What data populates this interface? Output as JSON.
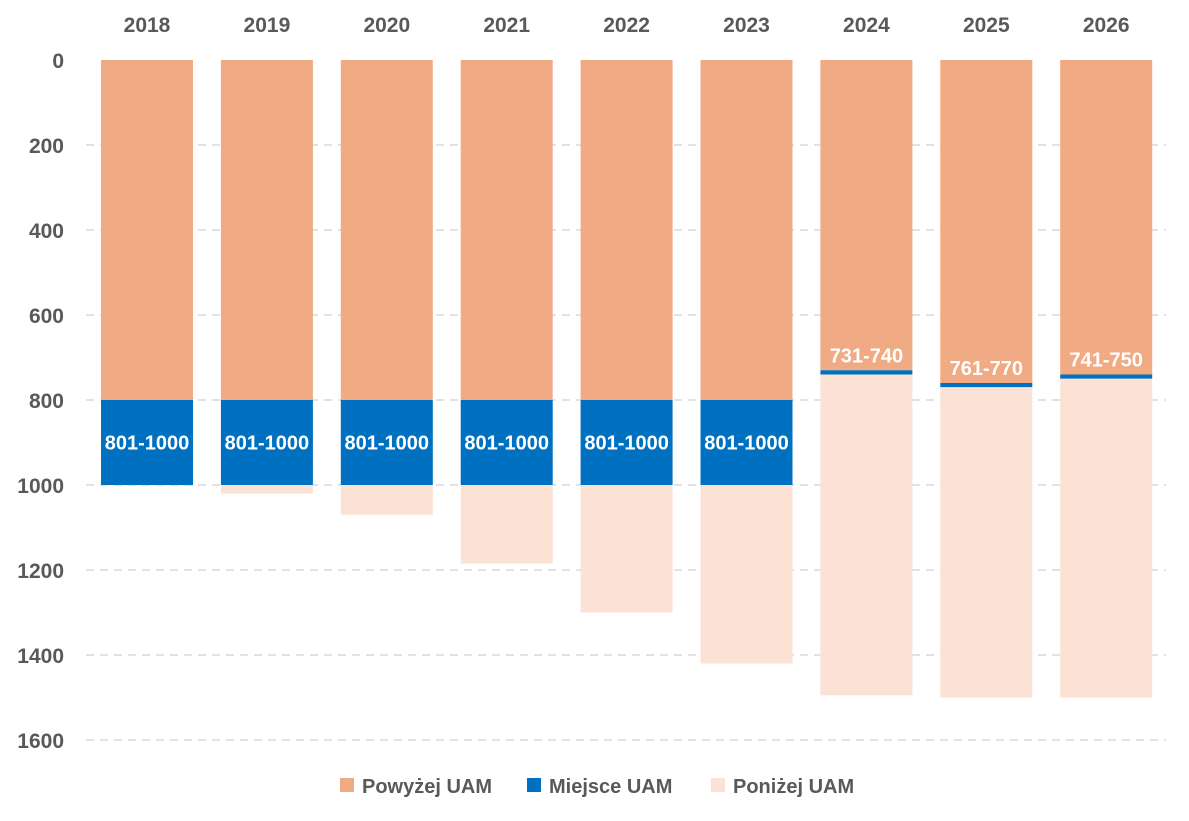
{
  "chart_data": {
    "type": "bar",
    "orientation": "vertical-stacked",
    "y_axis_inverted": true,
    "categories": [
      "2018",
      "2019",
      "2020",
      "2021",
      "2022",
      "2023",
      "2024",
      "2025",
      "2026"
    ],
    "ylim": [
      0,
      1600
    ],
    "y_ticks": [
      0,
      200,
      400,
      600,
      800,
      1000,
      1200,
      1400,
      1600
    ],
    "y_tick_labels": [
      "0",
      "200",
      "400",
      "600",
      "800",
      "1000",
      "1200",
      "1400",
      "1600"
    ],
    "series": [
      {
        "name": "Powyżej UAM",
        "color": "#F0AA84",
        "values": [
          800,
          800,
          800,
          800,
          800,
          800,
          730,
          760,
          740
        ]
      },
      {
        "name": "Miejsce UAM",
        "color": "#0070C0",
        "values": [
          200,
          200,
          200,
          200,
          200,
          200,
          10,
          10,
          10
        ]
      },
      {
        "name": "Poniżej UAM",
        "color": "#FBE2D5",
        "values": [
          0,
          20,
          70,
          185,
          300,
          420,
          755,
          730,
          750
        ]
      }
    ],
    "data_labels": [
      "801-1000",
      "801-1000",
      "801-1000",
      "801-1000",
      "801-1000",
      "801-1000",
      "731-740",
      "761-770",
      "741-750"
    ],
    "legend": {
      "position": "bottom",
      "entries": [
        "Powyżej UAM",
        "Miejsce UAM",
        "Poniżej UAM"
      ]
    },
    "grid": true,
    "title": "",
    "xlabel": "",
    "ylabel": ""
  }
}
